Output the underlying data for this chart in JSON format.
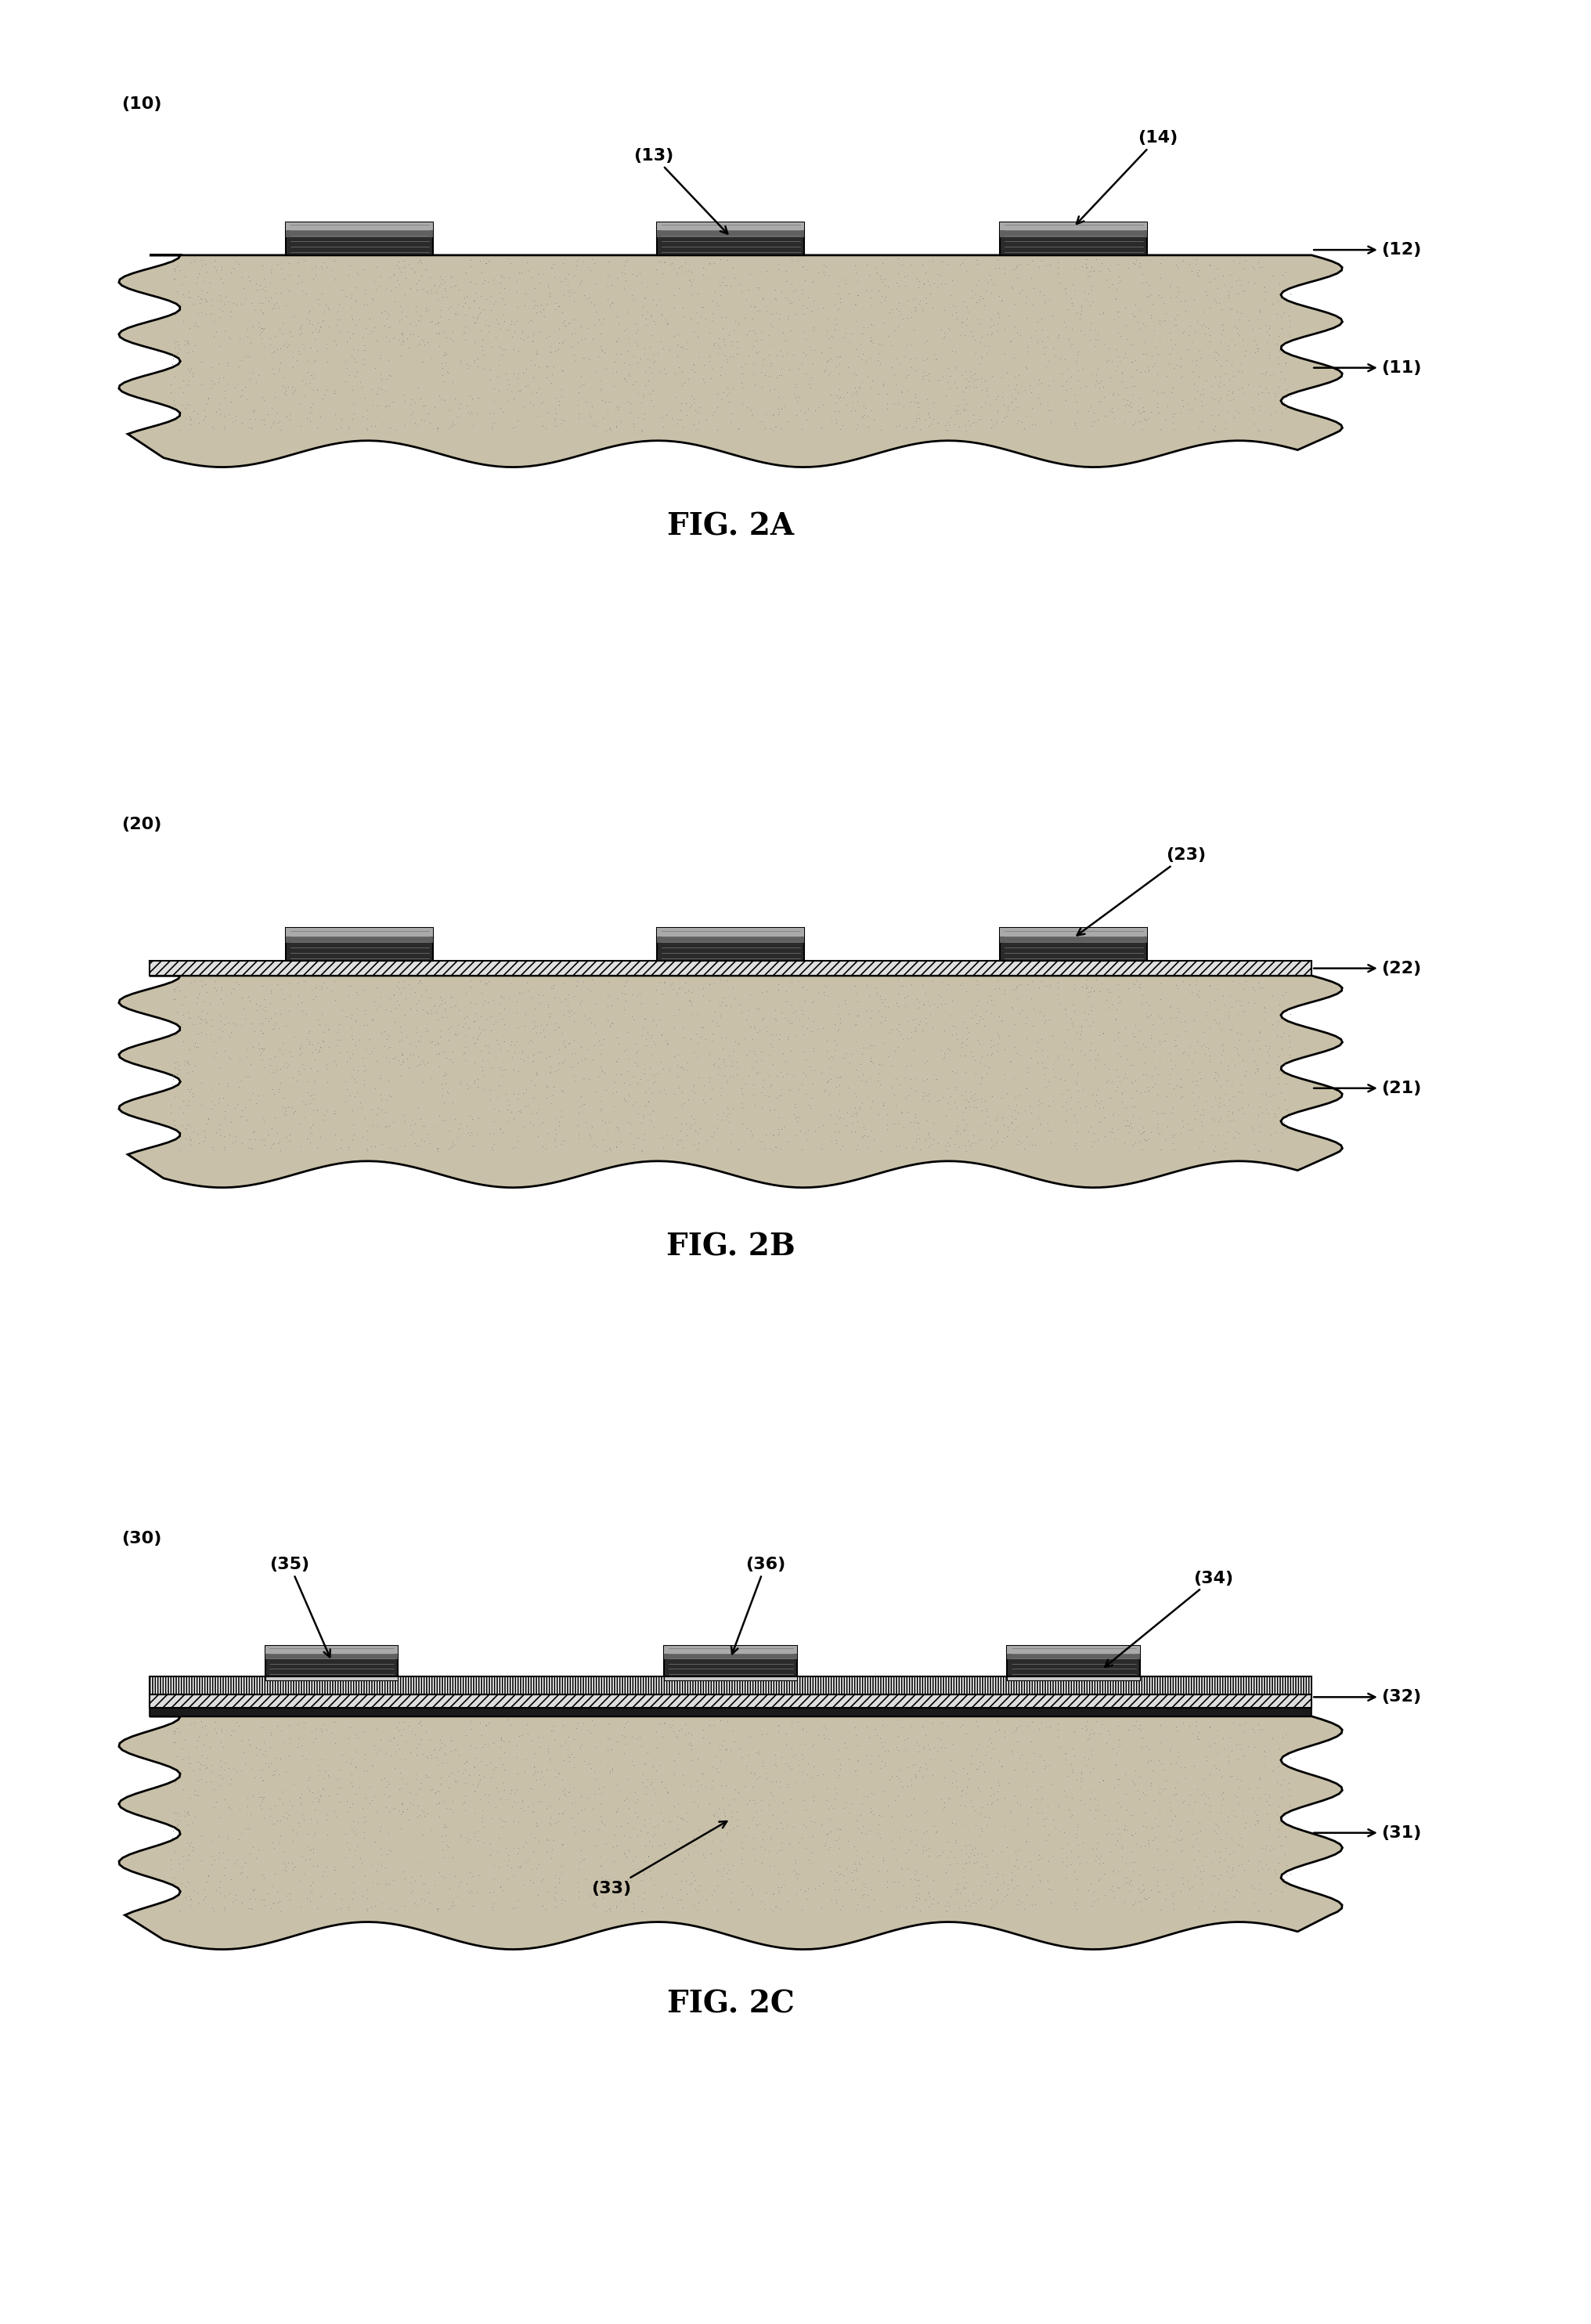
{
  "bg_color": "#ffffff",
  "fig_width": 20.32,
  "fig_height": 29.68,
  "fig2a_label": "(10)",
  "fig2b_label": "(20)",
  "fig2c_label": "(30)",
  "fig2a_title": "FIG. 2A",
  "fig2b_title": "FIG. 2B",
  "fig2c_title": "FIG. 2C",
  "substrate_color": "#c8c0a8",
  "substrate_edge": "#000000",
  "hatch_layer_color": "#e8e8e8",
  "electrode_dark": "#2a2a2a",
  "electrode_mid": "#606060",
  "electrode_light": "#aaaaaa",
  "dot_color": "#888888",
  "label_fontsize": 16,
  "title_fontsize": 28,
  "arrow_lw": 1.8
}
